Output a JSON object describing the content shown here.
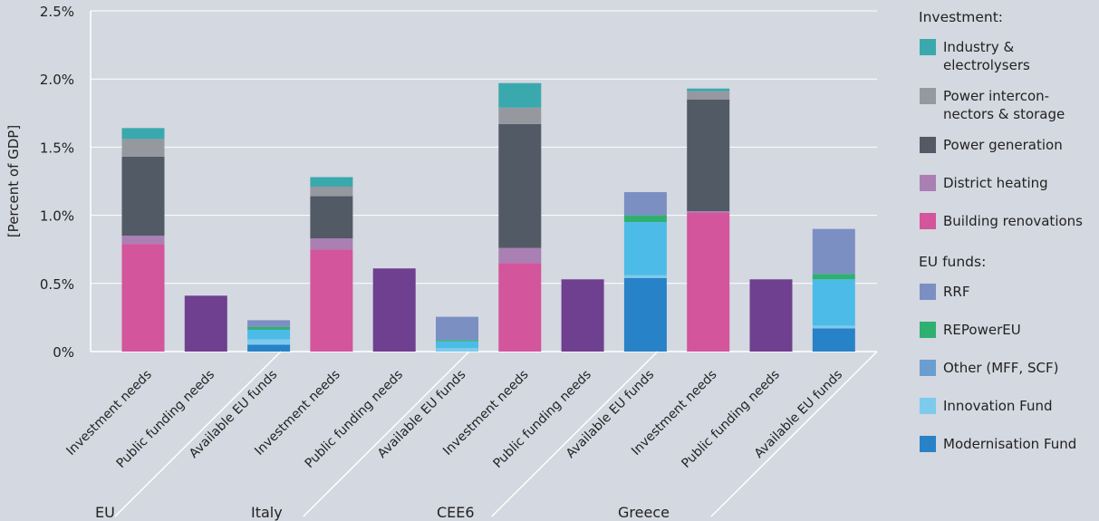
{
  "chart_data": {
    "type": "bar",
    "stacked": true,
    "ylabel": "[Percent of GDP]",
    "ylim": [
      0,
      2.5
    ],
    "yticks": [
      {
        "value": 0,
        "label": "0%"
      },
      {
        "value": 0.5,
        "label": "0.5%"
      },
      {
        "value": 1.0,
        "label": "1.0%"
      },
      {
        "value": 1.5,
        "label": "1.5%"
      },
      {
        "value": 2.0,
        "label": "2.0%"
      },
      {
        "value": 2.5,
        "label": "2.5%"
      }
    ],
    "grid": true,
    "legend_position": "right",
    "groups": [
      "EU",
      "Italy",
      "CEE6",
      "Greece"
    ],
    "bar_types": [
      "Investment needs",
      "Public funding needs",
      "Available EU funds"
    ],
    "series": [
      {
        "key": "building",
        "name": "Building renovations",
        "color": "#d3559b"
      },
      {
        "key": "district",
        "name": "District heating",
        "color": "#aa7fb4"
      },
      {
        "key": "powergen",
        "name": "Power generation",
        "color": "#525a66"
      },
      {
        "key": "interconn",
        "name": "Power intercon-\nnectors & storage",
        "color": "#9698a0"
      },
      {
        "key": "industry",
        "name": "Industry &\nelectrolysers",
        "color": "#3aa9ae"
      },
      {
        "key": "public",
        "name": "",
        "color": "#6f3f90"
      },
      {
        "key": "modfund",
        "name": "Modernisation Fund",
        "color": "#2882c8"
      },
      {
        "key": "innov",
        "name": "Innovation Fund",
        "color": "#7ccbec"
      },
      {
        "key": "other",
        "name": "Other (MFF, SCF)",
        "color": "#4dbbe8"
      },
      {
        "key": "repower",
        "name": "REPowerEU",
        "color": "#2fb070"
      },
      {
        "key": "rrf",
        "name": "RRF",
        "color": "#7b8fc3"
      }
    ],
    "bars": [
      {
        "group": "EU",
        "category": "Investment needs",
        "segments": {
          "building": 0.79,
          "district": 0.06,
          "powergen": 0.58,
          "interconn": 0.13,
          "industry": 0.08
        }
      },
      {
        "group": "EU",
        "category": "Public funding needs",
        "segments": {
          "public": 0.41
        }
      },
      {
        "group": "EU",
        "category": "Available EU funds",
        "segments": {
          "modfund": 0.05,
          "innov": 0.04,
          "other": 0.07,
          "repower": 0.02,
          "rrf": 0.05
        }
      },
      {
        "group": "Italy",
        "category": "Investment needs",
        "segments": {
          "building": 0.75,
          "district": 0.08,
          "powergen": 0.31,
          "interconn": 0.07,
          "industry": 0.07
        }
      },
      {
        "group": "Italy",
        "category": "Public funding needs",
        "segments": {
          "public": 0.61
        }
      },
      {
        "group": "Italy",
        "category": "Available EU funds",
        "segments": {
          "modfund": 0.0,
          "innov": 0.025,
          "other": 0.05,
          "repower": 0.01,
          "rrf": 0.17
        }
      },
      {
        "group": "CEE6",
        "category": "Investment needs",
        "segments": {
          "building": 0.65,
          "district": 0.11,
          "powergen": 0.91,
          "interconn": 0.12,
          "industry": 0.18
        }
      },
      {
        "group": "CEE6",
        "category": "Public funding needs",
        "segments": {
          "public": 0.53
        }
      },
      {
        "group": "CEE6",
        "category": "Available EU funds",
        "segments": {
          "modfund": 0.54,
          "innov": 0.02,
          "other": 0.39,
          "repower": 0.05,
          "rrf": 0.17
        }
      },
      {
        "group": "Greece",
        "category": "Investment needs",
        "segments": {
          "building": 1.02,
          "district": 0.01,
          "powergen": 0.82,
          "interconn": 0.06,
          "industry": 0.02
        }
      },
      {
        "group": "Greece",
        "category": "Public funding needs",
        "segments": {
          "public": 0.53
        }
      },
      {
        "group": "Greece",
        "category": "Available EU funds",
        "segments": {
          "modfund": 0.17,
          "innov": 0.02,
          "other": 0.34,
          "repower": 0.04,
          "rrf": 0.33
        }
      }
    ]
  },
  "legend": {
    "investment_heading": "Investment:",
    "investment_items": [
      {
        "label": "Industry &\nelectrolysers",
        "color": "#3aa9ae"
      },
      {
        "label": "Power intercon-\nnectors & storage",
        "color": "#9698a0"
      },
      {
        "label": "Power generation",
        "color": "#525a66"
      },
      {
        "label": "District heating",
        "color": "#aa7fb4"
      },
      {
        "label": "Building renovations",
        "color": "#d3559b"
      }
    ],
    "funds_heading": "EU funds:",
    "funds_items": [
      {
        "label": "RRF",
        "color": "#7b8fc3"
      },
      {
        "label": "REPowerEU",
        "color": "#2fb070"
      },
      {
        "label": "Other (MFF, SCF)",
        "color": "#6a9ed0"
      },
      {
        "label": "Innovation Fund",
        "color": "#7ccbec"
      },
      {
        "label": "Modernisation Fund",
        "color": "#2882c8"
      }
    ]
  }
}
